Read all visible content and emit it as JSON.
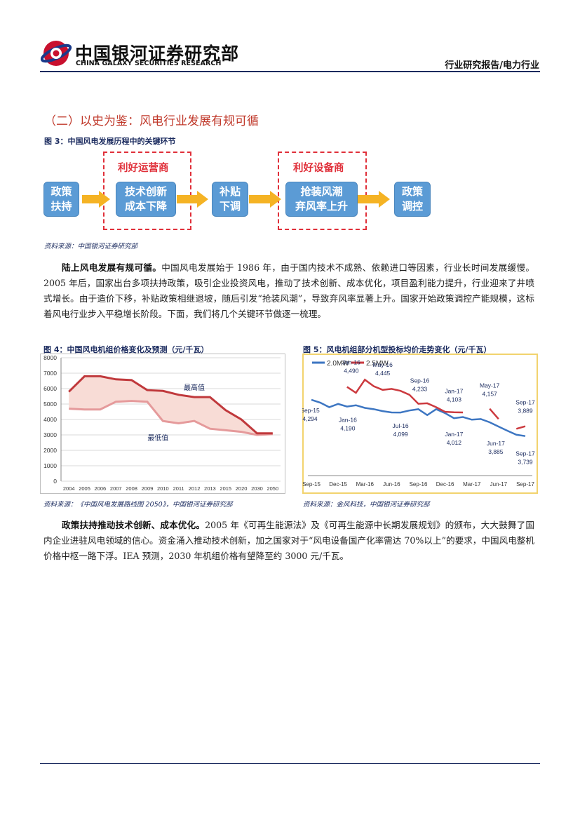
{
  "header": {
    "logo_cn": "中国银河证券研究部",
    "logo_en": "CHINA GALAXY SECURITIES RESEARCH",
    "report_type": "行业研究报告/电力行业"
  },
  "section_title": "（二）以史为鉴：风电行业发展有规可循",
  "figure3": {
    "title": "图 3：中国风电发展历程中的关键环节",
    "highlight_left": "利好运营商",
    "highlight_right": "利好设备商",
    "steps": [
      {
        "line1": "政策",
        "line2": "扶持"
      },
      {
        "line1": "技术创新",
        "line2": "成本下降"
      },
      {
        "line1": "补贴",
        "line2": "下调"
      },
      {
        "line1": "抢装风潮",
        "line2": "弃风率上升"
      },
      {
        "line1": "政策",
        "line2": "调控"
      }
    ],
    "source": "资料来源：中国银河证券研究部",
    "colors": {
      "box": "#5b9bd5",
      "arrow": "#f5b324",
      "highlight": "#e0303a"
    }
  },
  "para1": {
    "lead": "陆上风电发展有规可循。",
    "body": "中国风电发展始于 1986 年，由于国内技术不成熟、依赖进口等因素，行业长时间发展缓慢。2005 年后，国家出台多项扶持政策，吸引企业投资风电，推动了技术创新、成本优化，项目盈利能力提升，行业迎来了井喷式增长。由于造价下移，补贴政策相继退坡，随后引发“抢装风潮”，导致弃风率显著上升。国家开始政策调控产能规模，这标着风电行业步入平稳增长阶段。下面，我们将几个关键环节做逐一梳理。"
  },
  "figure4": {
    "title": "图 4：中国风电机组价格变化及预测（元/千瓦）",
    "source": "资料来源：《中国风电发展路线图 2050》，中国银河证券研究部"
  },
  "figure5": {
    "title": "图 5：风电机组部分机型投标均价走势变化（元/千瓦）",
    "source": "资料来源：金风科技，中国银河证券研究部"
  },
  "para2": {
    "lead": "政策扶持推动技术创新、成本优化。",
    "body": "2005 年《可再生能源法》及《可再生能源中长期发展规划》的颁布，大大鼓舞了国内企业进驻风电领域的信心。资金涌入推动技术创新，加之国家对于“风电设备国产化率需达 70%以上”的要求，中国风电整机价格中枢一路下浮。IEA 预测，2030 年机组价格有望降至约 3000 元/千瓦。"
  },
  "chart_data": [
    {
      "type": "area",
      "categories": [
        "2004",
        "2005",
        "2006",
        "2007",
        "2008",
        "2009",
        "2010",
        "2011",
        "2012",
        "2013",
        "2015",
        "2020",
        "2030",
        "2050"
      ],
      "series": [
        {
          "name": "最高值",
          "values": [
            5800,
            6800,
            6800,
            6600,
            6550,
            5900,
            5850,
            5600,
            5450,
            5450,
            4600,
            4000,
            3100,
            3100
          ]
        },
        {
          "name": "最低值",
          "values": [
            4700,
            4650,
            4650,
            5150,
            5200,
            5150,
            3900,
            3750,
            3900,
            3400,
            3300,
            3200,
            3000,
            3050
          ]
        }
      ],
      "ylim": [
        0,
        8000
      ],
      "yticks": [
        0,
        1000,
        2000,
        3000,
        4000,
        5000,
        6000,
        7000,
        8000
      ],
      "grid": true,
      "colors": {
        "max": "#c0393c",
        "min": "#e59a9b",
        "fill": "#f8dcd6"
      }
    },
    {
      "type": "line",
      "x": [
        "Sep-15",
        "Oct-15",
        "Nov-15",
        "Dec-15",
        "Jan-16",
        "Feb-16",
        "Mar-16",
        "Apr-16",
        "May-16",
        "Jun-16",
        "Jul-16",
        "Aug-16",
        "Sep-16",
        "Oct-16",
        "Nov-16",
        "Dec-16",
        "Jan-17",
        "Feb-17",
        "Mar-17",
        "Apr-17",
        "May-17",
        "Jun-17",
        "Jul-17",
        "Aug-17",
        "Sep-17"
      ],
      "xticks": [
        "Sep-15",
        "Dec-15",
        "Mar-16",
        "Jun-16",
        "Sep-16",
        "Dec-16",
        "Mar-17",
        "Jun-17",
        "Sep-17"
      ],
      "legend": [
        "2.0MW",
        "2.5MW"
      ],
      "legend_position": "top-left",
      "series": [
        {
          "name": "2.0MW",
          "values": [
            4294,
            4250,
            4180,
            4230,
            4190,
            4210,
            4170,
            4150,
            4120,
            4100,
            4099,
            4130,
            4150,
            4060,
            4150,
            4090,
            4012,
            4030,
            3990,
            4000,
            3950,
            3885,
            3820,
            3760,
            3739
          ]
        },
        {
          "name": "2.5MW",
          "values": [
            null,
            null,
            null,
            null,
            4490,
            4400,
            4600,
            4500,
            4445,
            4460,
            4430,
            4370,
            4233,
            4240,
            4180,
            4110,
            4103,
            4100,
            null,
            null,
            4157,
            4000,
            null,
            3850,
            3889
          ]
        }
      ],
      "annotations": [
        {
          "label": "Sep-15",
          "value": "4,294"
        },
        {
          "label": "Jan-16",
          "value": "4,490"
        },
        {
          "label": "Jan-16",
          "value": "4,190"
        },
        {
          "label": "May-16",
          "value": "4,445"
        },
        {
          "label": "Jul-16",
          "value": "4,099"
        },
        {
          "label": "Sep-16",
          "value": "4,233"
        },
        {
          "label": "Jan-17",
          "value": "4,103"
        },
        {
          "label": "Jan-17",
          "value": "4,012"
        },
        {
          "label": "May-17",
          "value": "4,157"
        },
        {
          "label": "Jun-17",
          "value": "3,885"
        },
        {
          "label": "Sep-17",
          "value": "3,889"
        },
        {
          "label": "Sep-17",
          "value": "3,739"
        }
      ],
      "colors": {
        "2.0MW": "#3d76c2",
        "2.5MW": "#cc3a3f",
        "frame": "#f2d36e"
      }
    }
  ]
}
